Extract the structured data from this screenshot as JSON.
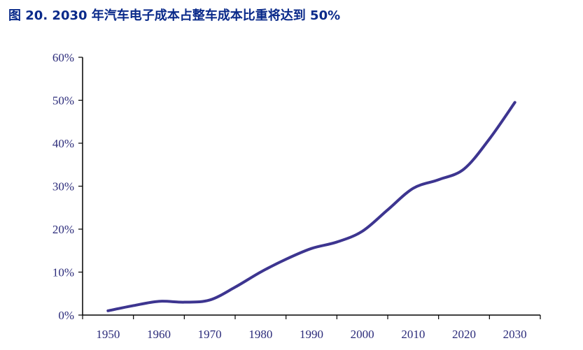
{
  "title": "图 20. 2030 年汽车电子成本占整车成本比重将达到 50%",
  "chart_data": {
    "type": "line",
    "title": "图 20. 2030 年汽车电子成本占整车成本比重将达到 50%",
    "xlabel": "",
    "ylabel": "",
    "x": [
      1950,
      1955,
      1960,
      1965,
      1970,
      1975,
      1980,
      1985,
      1990,
      1995,
      2000,
      2005,
      2010,
      2015,
      2020,
      2025,
      2030
    ],
    "series": [
      {
        "values": [
          1.0,
          2.2,
          3.2,
          3.0,
          3.5,
          6.5,
          10.0,
          13.0,
          15.5,
          17.0,
          19.5,
          24.5,
          29.5,
          31.5,
          34.0,
          41.0,
          49.5
        ]
      }
    ],
    "x_ticks": [
      "1950",
      "1960",
      "1970",
      "1980",
      "1990",
      "2000",
      "2010",
      "2020",
      "2030"
    ],
    "y_ticks": [
      "0%",
      "10%",
      "20%",
      "30%",
      "40%",
      "50%",
      "60%"
    ],
    "xlim": [
      1945,
      2035
    ],
    "ylim": [
      0,
      60
    ],
    "grid": false,
    "line_color": "#3d3590",
    "axis_color": "#000000",
    "tick_label_color": "#2b2b7a"
  }
}
